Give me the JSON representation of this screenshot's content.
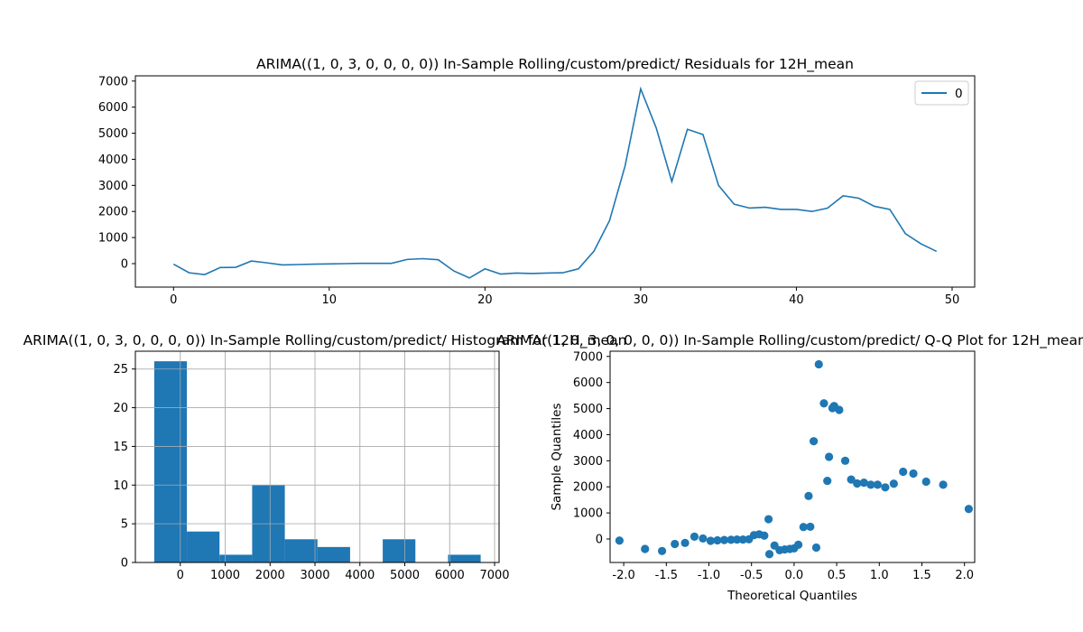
{
  "chart_data": [
    {
      "type": "line",
      "title": "ARIMA((1, 0, 3, 0, 0, 0, 0)) In-Sample Rolling/custom/predict/ Residuals for 12H_mean",
      "xlabel": "",
      "ylabel": "",
      "xlim": [
        -2.45,
        51.45
      ],
      "ylim": [
        -900,
        7200
      ],
      "xticks": [
        0,
        10,
        20,
        30,
        40,
        50
      ],
      "yticks": [
        0,
        1000,
        2000,
        3000,
        4000,
        5000,
        6000,
        7000
      ],
      "legend": "top-right",
      "grid": false,
      "color": "#1f77b4",
      "series": [
        {
          "name": "0",
          "x": [
            0,
            1,
            2,
            3,
            4,
            5,
            6,
            7,
            8,
            9,
            10,
            11,
            12,
            13,
            14,
            15,
            16,
            17,
            18,
            19,
            20,
            21,
            22,
            23,
            24,
            25,
            26,
            27,
            28,
            29,
            30,
            31,
            32,
            33,
            34,
            35,
            36,
            37,
            38,
            39,
            40,
            41,
            42,
            43,
            44,
            45,
            46,
            47,
            48,
            49
          ],
          "y": [
            -20,
            -350,
            -420,
            -150,
            -140,
            100,
            30,
            -50,
            -35,
            -20,
            -10,
            0,
            10,
            10,
            10,
            160,
            190,
            150,
            -280,
            -550,
            -200,
            -400,
            -360,
            -380,
            -360,
            -350,
            -200,
            480,
            1650,
            3750,
            6700,
            5200,
            3150,
            5150,
            4950,
            3000,
            2280,
            2130,
            2160,
            2080,
            2080,
            2000,
            2130,
            2600,
            2510,
            2200,
            2080,
            1150,
            760,
            470
          ]
        }
      ]
    },
    {
      "type": "bar",
      "title": "ARIMA((1, 0, 3, 0, 0, 0, 0)) In-Sample Rolling/custom/predict/ Histogram for 12H_mean",
      "xlabel": "",
      "ylabel": "",
      "xlim": [
        -1000,
        7100
      ],
      "ylim": [
        0,
        27.3
      ],
      "xticks": [
        0,
        1000,
        2000,
        3000,
        4000,
        5000,
        6000,
        7000
      ],
      "yticks": [
        0,
        5,
        10,
        15,
        20,
        25
      ],
      "grid": true,
      "color": "#1f77b4",
      "bin_edges": [
        -580,
        147,
        874,
        1601,
        2328,
        3055,
        3782,
        4509,
        5236,
        5963,
        6690
      ],
      "counts": [
        26,
        4,
        1,
        10,
        3,
        2,
        0,
        3,
        0,
        1
      ]
    },
    {
      "type": "scatter",
      "title": "ARIMA((1, 0, 3, 0, 0, 0, 0)) In-Sample Rolling/custom/predict/ Q-Q Plot for 12H_mean",
      "xlabel": "Theoretical Quantiles",
      "ylabel": "Sample Quantiles",
      "xlim": [
        -2.16,
        2.12
      ],
      "ylim": [
        -900,
        7200
      ],
      "xticks": [
        -2.0,
        -1.5,
        -1.0,
        -0.5,
        0.0,
        0.5,
        1.0,
        1.5,
        2.0
      ],
      "yticks": [
        0,
        1000,
        2000,
        3000,
        4000,
        5000,
        6000,
        7000
      ],
      "grid": false,
      "color": "#1f77b4",
      "points": {
        "x": [
          -2.05,
          -1.75,
          -1.55,
          -1.4,
          -1.28,
          -1.17,
          -1.07,
          -0.98,
          -0.9,
          -0.82,
          -0.74,
          -0.67,
          -0.6,
          -0.53,
          -0.47,
          -0.41,
          -0.35,
          -0.29,
          -0.23,
          -0.17,
          -0.11,
          -0.05,
          0.0,
          0.05,
          0.11,
          0.17,
          0.23,
          0.29,
          0.35,
          0.41,
          0.47,
          0.53,
          0.6,
          0.67,
          0.74,
          0.82,
          0.9,
          0.98,
          1.07,
          1.17,
          1.28,
          1.4,
          1.55,
          1.75,
          2.05,
          -0.3,
          0.19,
          0.26,
          0.39,
          0.45
        ],
        "y": [
          -60,
          -380,
          -460,
          -190,
          -150,
          90,
          20,
          -70,
          -50,
          -40,
          -30,
          -20,
          -20,
          -10,
          150,
          180,
          130,
          -580,
          -250,
          -430,
          -400,
          -380,
          -360,
          -220,
          460,
          1650,
          3750,
          6700,
          5200,
          3150,
          5100,
          4950,
          3000,
          2280,
          2130,
          2160,
          2080,
          2080,
          1980,
          2120,
          2580,
          2510,
          2200,
          2080,
          1150,
          760,
          470,
          -330,
          2230,
          5020
        ]
      }
    }
  ]
}
